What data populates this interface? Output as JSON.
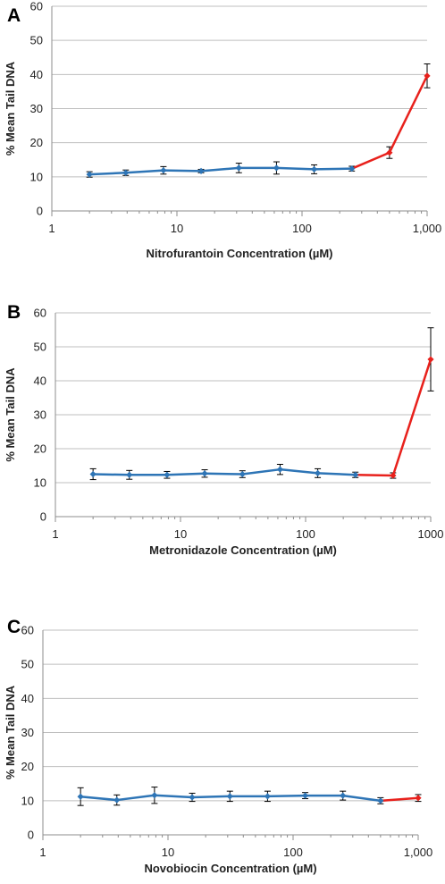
{
  "chart_data": [
    {
      "panel_label": "A",
      "type": "line",
      "title": "",
      "xlabel": "Nitrofurantoin Concentration (µM)",
      "ylabel": "% Mean Tail DNA",
      "xscale": "log",
      "xlim": [
        1,
        1000
      ],
      "ylim": [
        0,
        60
      ],
      "xticks": [
        1,
        10,
        100,
        1000
      ],
      "xtick_labels": [
        "1",
        "10",
        "100",
        "1,000"
      ],
      "yticks": [
        0,
        10,
        20,
        30,
        40,
        50,
        60
      ],
      "grid": "horizontal",
      "colors": {
        "normal": "#2e75b6",
        "highlight": "#e8211c",
        "error_bar": "#000000"
      },
      "highlight_from_index": 7,
      "series": [
        {
          "x": [
            2,
            3.9,
            7.8,
            15.6,
            31.25,
            62.5,
            125,
            250,
            500,
            1000
          ],
          "values": [
            10.7,
            11.2,
            11.9,
            11.7,
            12.6,
            12.6,
            12.2,
            12.4,
            17.1,
            39.6
          ],
          "errors": [
            0.8,
            0.8,
            1.1,
            0.5,
            1.4,
            1.8,
            1.3,
            0.7,
            1.7,
            3.5
          ]
        }
      ]
    },
    {
      "panel_label": "B",
      "type": "line",
      "title": "",
      "xlabel": "Metronidazole Concentration (µM)",
      "ylabel": "% Mean Tail DNA",
      "xscale": "log",
      "xlim": [
        1,
        1000
      ],
      "ylim": [
        0,
        60
      ],
      "xticks": [
        1,
        10,
        100,
        1000
      ],
      "xtick_labels": [
        "1",
        "10",
        "100",
        "1000"
      ],
      "yticks": [
        0,
        10,
        20,
        30,
        40,
        50,
        60
      ],
      "grid": "horizontal",
      "colors": {
        "normal": "#2e75b6",
        "highlight": "#e8211c",
        "error_bar": "#000000"
      },
      "highlight_from_index": 7,
      "series": [
        {
          "x": [
            2,
            3.9,
            7.8,
            15.6,
            31.25,
            62.5,
            125,
            250,
            500,
            1000
          ],
          "values": [
            12.5,
            12.3,
            12.3,
            12.7,
            12.5,
            13.9,
            12.8,
            12.3,
            12.1,
            46.3
          ],
          "errors": [
            1.6,
            1.3,
            1.0,
            1.1,
            1.0,
            1.5,
            1.3,
            0.8,
            0.8,
            9.3
          ]
        }
      ]
    },
    {
      "panel_label": "C",
      "type": "line",
      "title": "",
      "xlabel": "Novobiocin Concentration (µM)",
      "ylabel": "% Mean Tail DNA",
      "xscale": "log",
      "xlim": [
        1,
        1000
      ],
      "ylim": [
        0,
        60
      ],
      "xticks": [
        1,
        10,
        100,
        1000
      ],
      "xtick_labels": [
        "1",
        "10",
        "100",
        "1,000"
      ],
      "yticks": [
        0,
        10,
        20,
        30,
        40,
        50,
        60
      ],
      "grid": "horizontal",
      "colors": {
        "normal": "#2e75b6",
        "highlight": "#e8211c",
        "error_bar": "#000000"
      },
      "highlight_from_index": 8,
      "series": [
        {
          "x": [
            2,
            3.9,
            7.8,
            15.6,
            31.25,
            62.5,
            125,
            250,
            500,
            1000
          ],
          "values": [
            11.2,
            10.2,
            11.6,
            11.0,
            11.3,
            11.3,
            11.5,
            11.5,
            10.0,
            10.8
          ],
          "errors": [
            2.6,
            1.5,
            2.4,
            1.2,
            1.5,
            1.5,
            0.9,
            1.3,
            0.9,
            1.0
          ]
        }
      ]
    }
  ]
}
